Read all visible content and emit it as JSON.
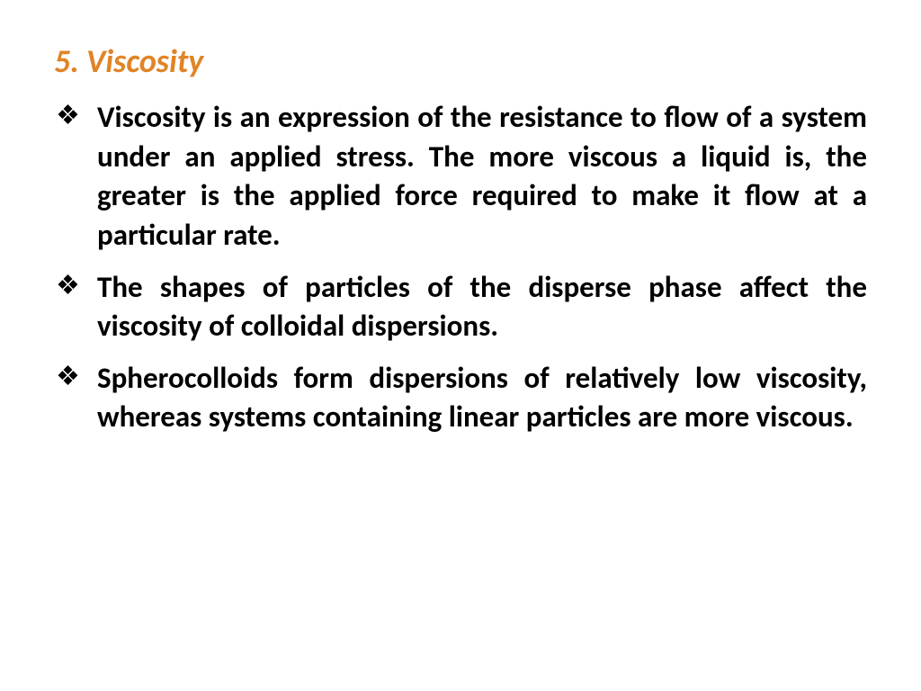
{
  "slide": {
    "heading": "5. Viscosity",
    "heading_color": "#e08427",
    "heading_fontsize": 36,
    "heading_italic": true,
    "heading_bold": true,
    "body_color": "#000000",
    "body_fontsize": 33,
    "body_bold": true,
    "bullet_glyph": "❖",
    "text_align": "justify",
    "background_color": "#ffffff",
    "bullets": [
      "Viscosity is an expression of the resistance to flow of a system under an applied stress. The more viscous a liquid is, the greater is the applied force required to make it flow at a particular rate.",
      "The shapes of particles of the disperse phase affect the viscosity of colloidal dispersions.",
      "Spherocolloids form dispersions of relatively low viscosity, whereas systems containing linear particles are more viscous."
    ]
  }
}
